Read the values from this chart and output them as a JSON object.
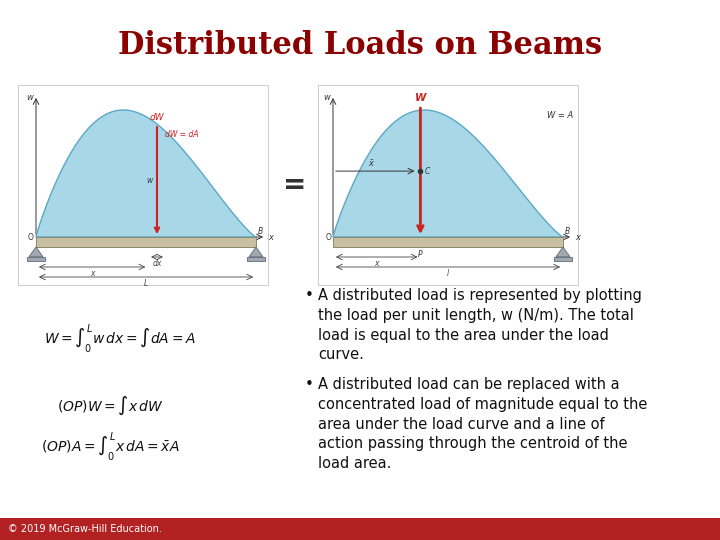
{
  "title": "Distributed Loads on Beams",
  "title_color": "#8B0000",
  "title_fontsize": 22,
  "title_font": "serif",
  "bg_color": "#FFFFFF",
  "footer_color": "#B22222",
  "footer_text": "© 2019 McGraw-Hill Education.",
  "footer_text_color": "#FFFFFF",
  "footer_fontsize": 7,
  "bullet1": "A distributed load is represented by plotting\nthe load per unit length, w (N/m). The total\nload is equal to the area under the load\ncurve.",
  "bullet2": "A distributed load can be replaced with a\nconcentrated load of magnitude equal to the\narea under the load curve and a line of\naction passing through the centroid of the\nload area.",
  "bullet_fontsize": 10.5,
  "bullet_color": "#111111",
  "eq1": "$W = \\int_0^L w\\,dx = \\int dA = A$",
  "eq2": "$(OP)W = \\int x\\,dW$",
  "eq3": "$(OP)A = \\int_0^L x\\,dA = \\bar{x}A$",
  "eq_fontsize": 10,
  "teal_fill": "#A8D8E8",
  "teal_edge": "#5BA8C4",
  "beam_fill": "#C8C0A0",
  "beam_edge": "#888870",
  "support_fill": "#A0A8B0",
  "support_edge": "#606878",
  "red_arrow": "#CC2222",
  "dim_color": "#444444",
  "label_color": "#333333"
}
